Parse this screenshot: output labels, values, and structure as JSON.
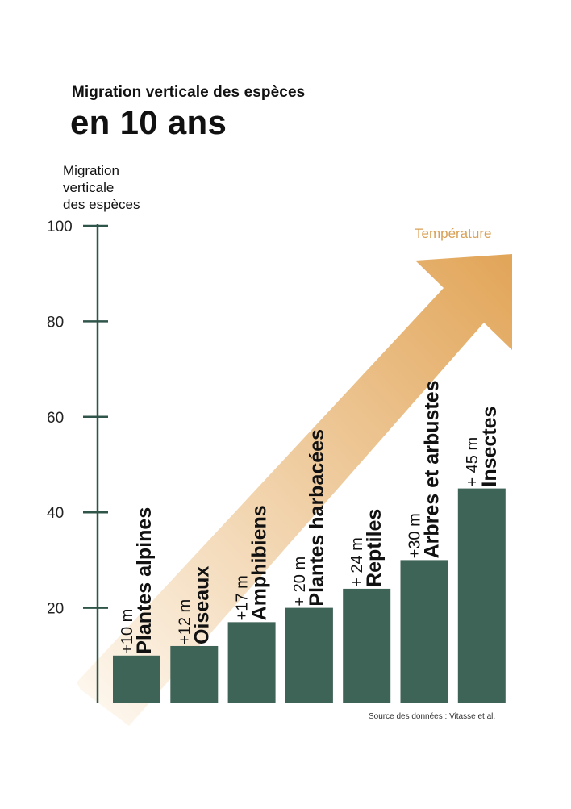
{
  "header": {
    "title": "Migration verticale des espèces",
    "subtitle": "en 10 ans"
  },
  "source": "Source des données : Vitasse et al.",
  "chart_data": {
    "type": "bar",
    "ylabel": [
      "Migration",
      "verticale",
      "des espèces"
    ],
    "ylim": [
      0,
      105
    ],
    "yticks": [
      20,
      40,
      60,
      80,
      100
    ],
    "annotation": "Température",
    "bars": [
      {
        "category": "Plantes alpines",
        "value": 10,
        "label": "+10 m"
      },
      {
        "category": "Oiseaux",
        "value": 12,
        "label": "+12 m"
      },
      {
        "category": "Amphibiens",
        "value": 17,
        "label": "+17 m"
      },
      {
        "category": "Plantes harbacées",
        "value": 20,
        "label": "+ 20 m"
      },
      {
        "category": "Reptiles",
        "value": 24,
        "label": "+ 24 m"
      },
      {
        "category": "Arbres et arbustes",
        "value": 30,
        "label": "+30 m"
      },
      {
        "category": "Insectes",
        "value": 45,
        "label": "+ 45 m"
      }
    ],
    "colors": {
      "bar": "#3e6357",
      "axis": "#2f5449",
      "arrow_start": "#fdf6ec",
      "arrow_end": "#e2a65a",
      "annotation": "#d9a055"
    }
  }
}
